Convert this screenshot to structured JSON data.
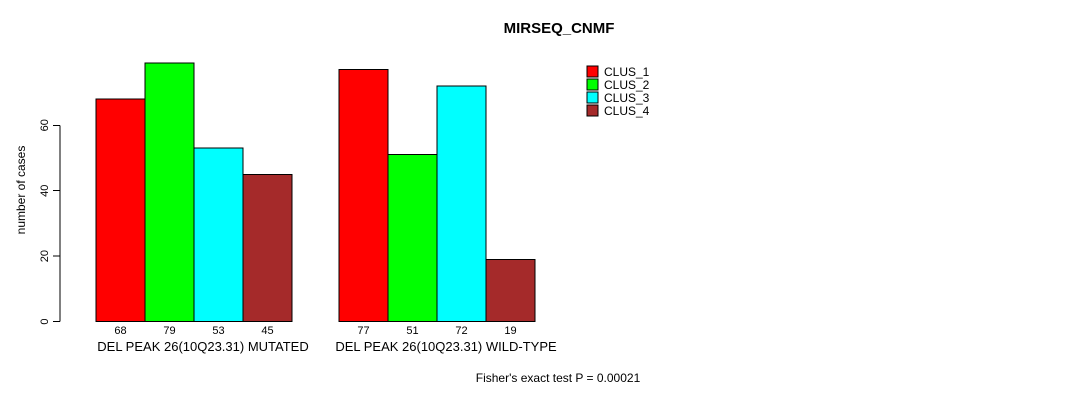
{
  "chart_data": {
    "type": "bar",
    "title": "MIRSEQ_CNMF",
    "ylabel": "number of cases",
    "xlabel": "",
    "yticks": [
      0,
      20,
      40,
      60
    ],
    "ylim": [
      0,
      80
    ],
    "grid": false,
    "legend_position": "top-right",
    "bar_outline_color": "#000000",
    "value_labels_shown": true,
    "series": [
      {
        "name": "CLUS_1",
        "color": "#ff0000"
      },
      {
        "name": "CLUS_2",
        "color": "#00ff00"
      },
      {
        "name": "CLUS_3",
        "color": "#00ffff"
      },
      {
        "name": "CLUS_4",
        "color": "#a52a2a"
      }
    ],
    "groups": [
      {
        "label": "DEL PEAK 26(10Q23.31) MUTATED",
        "values": [
          68,
          79,
          53,
          45
        ]
      },
      {
        "label": "DEL PEAK 26(10Q23.31) WILD-TYPE",
        "values": [
          77,
          51,
          72,
          19
        ]
      }
    ]
  },
  "footer": {
    "note": "Fisher's exact test P = 0.00021"
  }
}
